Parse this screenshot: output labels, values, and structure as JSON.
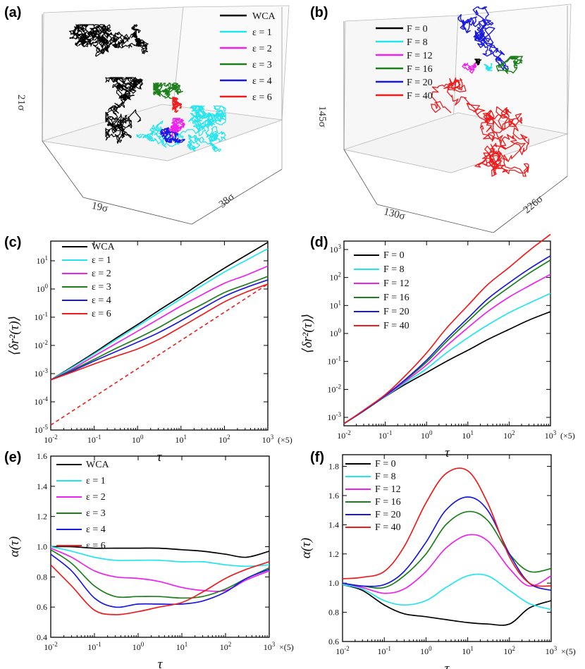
{
  "panels": {
    "a": {
      "label": "(a)",
      "axis_labels": [
        "21σ",
        "19σ",
        "38σ"
      ],
      "legend": [
        "WCA",
        "ε = 1",
        "ε = 2",
        "ε = 3",
        "ε = 4",
        "ε = 6"
      ],
      "colors": [
        "#000000",
        "#22e5ee",
        "#ee22ee",
        "#1b7f1b",
        "#1a1adf",
        "#ee1c1c"
      ]
    },
    "b": {
      "label": "(b)",
      "axis_labels": [
        "145σ",
        "130σ",
        "226σ"
      ],
      "legend": [
        "F = 0",
        "F = 8",
        "F = 12",
        "F = 16",
        "F = 20",
        "F = 40"
      ],
      "colors": [
        "#000000",
        "#22e5ee",
        "#ee22ee",
        "#1b7f1b",
        "#1a1adf",
        "#ee1c1c"
      ]
    }
  },
  "chart_data": [
    {
      "id": "c",
      "label": "(c)",
      "type": "line",
      "xscale": "log",
      "yscale": "log",
      "xlim": [
        0.01,
        1000
      ],
      "ylim": [
        1e-05,
        50
      ],
      "xticks": [
        "10^-2",
        "10^-1",
        "10^0",
        "10^1",
        "10^2",
        "10^3"
      ],
      "x_suffix": "(×5)",
      "yticks": [
        "10^-5",
        "10^-4",
        "10^-3",
        "10^-2",
        "10^-1",
        "10^0",
        "10^1"
      ],
      "xlabel": "τ",
      "ylabel": "⟨δr²(τ)⟩",
      "x": [
        0.01,
        0.03,
        0.1,
        0.3,
        1,
        3,
        10,
        30,
        100,
        300,
        1000
      ],
      "series": [
        {
          "name": "WCA",
          "color": "#000000",
          "values": [
            0.0006,
            0.0017,
            0.0055,
            0.017,
            0.055,
            0.17,
            0.55,
            1.7,
            5.5,
            15,
            45
          ]
        },
        {
          "name": "ε = 1",
          "color": "#22e5ee",
          "values": [
            0.0006,
            0.0016,
            0.005,
            0.015,
            0.048,
            0.14,
            0.45,
            1.3,
            4,
            10,
            27
          ]
        },
        {
          "name": "ε = 2",
          "color": "#ee22ee",
          "values": [
            0.0006,
            0.0014,
            0.0042,
            0.011,
            0.032,
            0.085,
            0.25,
            0.62,
            1.6,
            3,
            6.5
          ]
        },
        {
          "name": "ε = 3",
          "color": "#1b7f1b",
          "values": [
            0.0006,
            0.0013,
            0.0032,
            0.0075,
            0.018,
            0.042,
            0.12,
            0.28,
            0.75,
            1.4,
            2.8
          ]
        },
        {
          "name": "ε = 4",
          "color": "#1a1adf",
          "values": [
            0.0006,
            0.0012,
            0.0028,
            0.0058,
            0.013,
            0.028,
            0.075,
            0.2,
            0.55,
            1.1,
            2.1
          ]
        },
        {
          "name": "ε = 6",
          "color": "#ee1c1c",
          "values": [
            0.0006,
            0.0011,
            0.0022,
            0.004,
            0.0075,
            0.016,
            0.045,
            0.12,
            0.35,
            0.75,
            1.5
          ]
        }
      ],
      "reference_line": {
        "name": "slope 1 guide",
        "color": "#ee1c1c",
        "x": [
          0.01,
          1000
        ],
        "values": [
          1.5e-05,
          1.5
        ]
      }
    },
    {
      "id": "d",
      "label": "(d)",
      "type": "line",
      "xscale": "log",
      "yscale": "log",
      "xlim": [
        0.01,
        1000
      ],
      "ylim": [
        0.0005,
        2000
      ],
      "xticks": [
        "10^-2",
        "10^-1",
        "10^0",
        "10^1",
        "10^2",
        "10^3"
      ],
      "x_suffix": "(×5)",
      "yticks": [
        "10^-3",
        "10^-2",
        "10^-1",
        "10^0",
        "10^1",
        "10^2",
        "10^3"
      ],
      "xlabel": "τ",
      "ylabel": "⟨δr²(τ)⟩",
      "x": [
        0.01,
        0.03,
        0.1,
        0.3,
        1,
        3,
        10,
        30,
        100,
        300,
        1000
      ],
      "series": [
        {
          "name": "F = 0",
          "color": "#000000",
          "values": [
            0.0006,
            0.0017,
            0.0055,
            0.015,
            0.04,
            0.1,
            0.25,
            0.6,
            1.4,
            3,
            6
          ]
        },
        {
          "name": "F = 8",
          "color": "#22e5ee",
          "values": [
            0.0006,
            0.0017,
            0.0056,
            0.017,
            0.055,
            0.2,
            0.7,
            2,
            5.5,
            12,
            27
          ]
        },
        {
          "name": "F = 12",
          "color": "#ee22ee",
          "values": [
            0.0006,
            0.0017,
            0.0058,
            0.019,
            0.075,
            0.35,
            1.6,
            6,
            20,
            50,
            130
          ]
        },
        {
          "name": "F = 16",
          "color": "#1b7f1b",
          "values": [
            0.0006,
            0.0017,
            0.006,
            0.021,
            0.095,
            0.5,
            2.7,
            12,
            45,
            140,
            420
          ]
        },
        {
          "name": "F = 20",
          "color": "#1a1adf",
          "values": [
            0.0006,
            0.0017,
            0.006,
            0.022,
            0.11,
            0.62,
            3.5,
            17,
            65,
            200,
            600
          ]
        },
        {
          "name": "F = 40",
          "color": "#ee1c1c",
          "values": [
            0.0006,
            0.0018,
            0.0065,
            0.03,
            0.2,
            1.5,
            10,
            55,
            230,
            900,
            3500
          ]
        }
      ]
    },
    {
      "id": "e",
      "label": "(e)",
      "type": "line",
      "xscale": "log",
      "yscale": "linear",
      "xlim": [
        0.01,
        1000
      ],
      "ylim": [
        0.4,
        1.6
      ],
      "xticks": [
        "10^-2",
        "10^-1",
        "10^0",
        "10^1",
        "10^2",
        "10^3"
      ],
      "x_suffix": "×(5)",
      "yticks": [
        "0.4",
        "0.6",
        "0.8",
        "1.0",
        "1.2",
        "1.4",
        "1.6"
      ],
      "xlabel": "τ",
      "ylabel": "α(τ)",
      "x": [
        0.01,
        0.03,
        0.1,
        0.3,
        1,
        3,
        10,
        30,
        100,
        300,
        1000
      ],
      "series": [
        {
          "name": "WCA",
          "color": "#000000",
          "values": [
            1.0,
            1.0,
            0.99,
            0.99,
            0.99,
            0.99,
            0.98,
            0.97,
            0.95,
            0.93,
            0.97
          ]
        },
        {
          "name": "ε = 1",
          "color": "#22e5ee",
          "values": [
            1.0,
            0.97,
            0.93,
            0.91,
            0.91,
            0.91,
            0.9,
            0.9,
            0.88,
            0.87,
            0.88
          ]
        },
        {
          "name": "ε = 2",
          "color": "#ee22ee",
          "values": [
            0.99,
            0.93,
            0.84,
            0.8,
            0.79,
            0.77,
            0.73,
            0.71,
            0.71,
            0.78,
            0.84
          ]
        },
        {
          "name": "ε = 3",
          "color": "#1b7f1b",
          "values": [
            0.98,
            0.89,
            0.74,
            0.67,
            0.67,
            0.67,
            0.66,
            0.67,
            0.72,
            0.79,
            0.86
          ]
        },
        {
          "name": "ε = 4",
          "color": "#1a1adf",
          "values": [
            0.95,
            0.84,
            0.66,
            0.6,
            0.62,
            0.62,
            0.62,
            0.64,
            0.7,
            0.79,
            0.85
          ]
        },
        {
          "name": "ε = 6",
          "color": "#ee1c1c",
          "values": [
            0.88,
            0.74,
            0.58,
            0.55,
            0.57,
            0.6,
            0.63,
            0.7,
            0.79,
            0.85,
            0.9
          ]
        }
      ]
    },
    {
      "id": "f",
      "label": "(f)",
      "type": "line",
      "xscale": "log",
      "yscale": "linear",
      "xlim": [
        0.01,
        1000
      ],
      "ylim": [
        0.6,
        1.88
      ],
      "xticks": [
        "10^-2",
        "10^-1",
        "10^0",
        "10^1",
        "10^2",
        "10^3"
      ],
      "x_suffix": "×(5)",
      "yticks": [
        "0.6",
        "0.8",
        "1.0",
        "1.2",
        "1.4",
        "1.6",
        "1.8"
      ],
      "xlabel": "τ",
      "ylabel": "α(τ)",
      "x": [
        0.01,
        0.03,
        0.1,
        0.3,
        1,
        3,
        10,
        30,
        100,
        300,
        1000
      ],
      "series": [
        {
          "name": "F = 0",
          "color": "#000000",
          "values": [
            0.99,
            0.95,
            0.85,
            0.79,
            0.77,
            0.75,
            0.73,
            0.72,
            0.72,
            0.83,
            0.88
          ]
        },
        {
          "name": "F = 8",
          "color": "#22e5ee",
          "values": [
            0.99,
            0.96,
            0.88,
            0.85,
            0.88,
            0.97,
            1.05,
            1.05,
            0.95,
            0.86,
            0.82
          ]
        },
        {
          "name": "F = 12",
          "color": "#ee22ee",
          "values": [
            1.0,
            0.97,
            0.93,
            0.96,
            1.08,
            1.24,
            1.33,
            1.29,
            1.1,
            0.98,
            1.05
          ]
        },
        {
          "name": "F = 16",
          "color": "#1b7f1b",
          "values": [
            1.0,
            0.98,
            0.97,
            1.05,
            1.2,
            1.4,
            1.49,
            1.43,
            1.2,
            1.08,
            1.1
          ]
        },
        {
          "name": "F = 20",
          "color": "#1a1adf",
          "values": [
            1.0,
            0.98,
            0.99,
            1.08,
            1.28,
            1.5,
            1.59,
            1.5,
            1.2,
            1.0,
            0.95
          ]
        },
        {
          "name": "F = 40",
          "color": "#ee1c1c",
          "values": [
            1.03,
            1.04,
            1.08,
            1.25,
            1.55,
            1.75,
            1.77,
            1.55,
            1.18,
            1.0,
            0.98
          ]
        }
      ]
    }
  ]
}
